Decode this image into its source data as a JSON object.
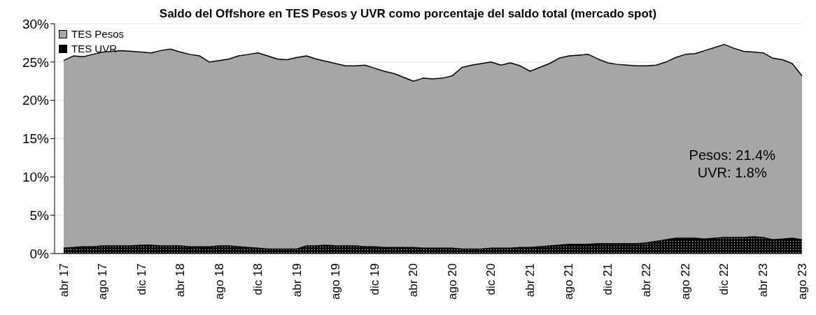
{
  "chart_data": {
    "type": "area",
    "title": "Saldo del Offshore en TES Pesos y UVR como porcentaje del saldo total (mercado spot)",
    "categories": [
      "abr 17",
      null,
      null,
      null,
      "ago 17",
      null,
      null,
      null,
      "dic 17",
      null,
      null,
      null,
      "abr 18",
      null,
      null,
      null,
      "ago 18",
      null,
      null,
      null,
      "dic 18",
      null,
      null,
      null,
      "abr 19",
      null,
      null,
      null,
      "ago 19",
      null,
      null,
      null,
      "dic 19",
      null,
      null,
      null,
      "abr 20",
      null,
      null,
      null,
      "ago 20",
      null,
      null,
      null,
      "dic 20",
      null,
      null,
      null,
      "abr 21",
      null,
      null,
      null,
      "ago 21",
      null,
      null,
      null,
      "dic 21",
      null,
      null,
      null,
      "abr 22",
      null,
      null,
      null,
      "ago 22",
      null,
      null,
      null,
      "dic 22",
      null,
      null,
      null,
      "abr 23",
      null,
      null,
      null,
      "ago 23"
    ],
    "stacked": true,
    "series": [
      {
        "name": "TES UVR",
        "color": "#000000",
        "values": [
          0.7,
          0.8,
          0.9,
          0.9,
          1.0,
          1.0,
          1.0,
          1.0,
          1.1,
          1.1,
          1.0,
          1.0,
          1.0,
          0.9,
          0.9,
          0.9,
          1.0,
          1.0,
          0.9,
          0.8,
          0.7,
          0.6,
          0.6,
          0.6,
          0.6,
          1.0,
          1.0,
          1.1,
          1.0,
          1.0,
          1.0,
          0.9,
          0.9,
          0.8,
          0.8,
          0.8,
          0.8,
          0.7,
          0.7,
          0.7,
          0.7,
          0.6,
          0.6,
          0.6,
          0.7,
          0.7,
          0.7,
          0.8,
          0.8,
          0.9,
          1.0,
          1.1,
          1.2,
          1.2,
          1.2,
          1.3,
          1.3,
          1.3,
          1.3,
          1.3,
          1.4,
          1.6,
          1.8,
          2.0,
          2.0,
          2.0,
          1.9,
          2.0,
          2.1,
          2.1,
          2.1,
          2.2,
          2.1,
          1.8,
          1.9,
          2.0,
          1.8
        ]
      },
      {
        "name": "TES Pesos",
        "color": "#a6a6a6",
        "values": [
          24.5,
          25.0,
          24.8,
          25.1,
          25.3,
          25.4,
          25.5,
          25.4,
          25.2,
          25.1,
          25.5,
          25.7,
          25.3,
          25.1,
          24.9,
          24.1,
          24.2,
          24.4,
          24.9,
          25.2,
          25.5,
          25.2,
          24.8,
          24.7,
          25.0,
          24.8,
          24.4,
          24.0,
          23.8,
          23.5,
          23.5,
          23.7,
          23.3,
          23.0,
          22.7,
          22.2,
          21.7,
          22.2,
          22.1,
          22.2,
          22.5,
          23.7,
          24.0,
          24.2,
          24.3,
          23.9,
          24.2,
          23.7,
          23.0,
          23.4,
          23.8,
          24.4,
          24.6,
          24.7,
          24.8,
          24.1,
          23.6,
          23.4,
          23.3,
          23.2,
          23.1,
          23.0,
          23.2,
          23.6,
          24.0,
          24.1,
          24.6,
          24.9,
          25.2,
          24.7,
          24.3,
          24.1,
          24.1,
          23.7,
          23.4,
          22.8,
          21.4
        ]
      }
    ],
    "ylim": [
      0,
      30
    ],
    "yticks": [
      {
        "value": 0,
        "label": "0%"
      },
      {
        "value": 5,
        "label": "5%"
      },
      {
        "value": 10,
        "label": "10%"
      },
      {
        "value": 15,
        "label": "15%"
      },
      {
        "value": 20,
        "label": "20%"
      },
      {
        "value": 25,
        "label": "25%"
      },
      {
        "value": 30,
        "label": "30%"
      }
    ],
    "grid": "y",
    "legend": "top left",
    "annotations": [
      "Pesos: 21.4%",
      "UVR: 1.8%"
    ]
  }
}
